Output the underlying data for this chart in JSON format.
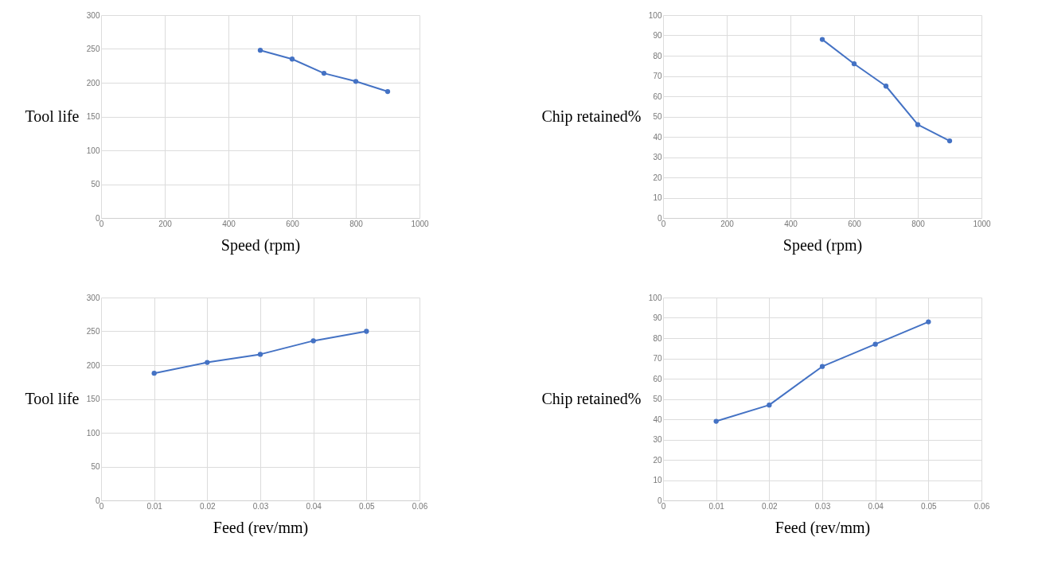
{
  "chart_data": [
    {
      "type": "line",
      "xlabel": "Speed (rpm)",
      "ylabel": "Tool life",
      "x": [
        500,
        600,
        700,
        800,
        900
      ],
      "xlim": [
        0,
        1000
      ],
      "xticks": [
        0,
        200,
        400,
        600,
        800,
        1000
      ],
      "ylim": [
        0,
        300
      ],
      "yticks": [
        0,
        50,
        100,
        150,
        200,
        250,
        300
      ],
      "grid": true,
      "marker": "circle",
      "line_style": "solid",
      "series": [
        {
          "color": "#4472c4",
          "values": [
            248,
            235,
            214,
            202,
            187
          ]
        }
      ]
    },
    {
      "type": "line",
      "xlabel": "Speed (rpm)",
      "ylabel": "Chip retained%",
      "x": [
        500,
        600,
        700,
        800,
        900
      ],
      "xlim": [
        0,
        1000
      ],
      "xticks": [
        0,
        200,
        400,
        600,
        800,
        1000
      ],
      "ylim": [
        0,
        100
      ],
      "yticks": [
        0,
        10,
        20,
        30,
        40,
        50,
        60,
        70,
        80,
        90,
        100
      ],
      "grid": true,
      "marker": "circle",
      "line_style": "solid",
      "series": [
        {
          "color": "#4472c4",
          "values": [
            88,
            76,
            65,
            46,
            38
          ]
        }
      ]
    },
    {
      "type": "line",
      "xlabel": "Feed (rev/mm)",
      "ylabel": "Tool life",
      "x": [
        0.01,
        0.02,
        0.03,
        0.04,
        0.05
      ],
      "xlim": [
        0,
        0.06
      ],
      "xticks": [
        0,
        0.01,
        0.02,
        0.03,
        0.04,
        0.05,
        0.06
      ],
      "ylim": [
        0,
        300
      ],
      "yticks": [
        0,
        50,
        100,
        150,
        200,
        250,
        300
      ],
      "grid": true,
      "marker": "circle",
      "line_style": "solid",
      "series": [
        {
          "color": "#4472c4",
          "values": [
            188,
            204,
            216,
            236,
            250
          ]
        }
      ]
    },
    {
      "type": "line",
      "xlabel": "Feed (rev/mm)",
      "ylabel": "Chip retained%",
      "x": [
        0.01,
        0.02,
        0.03,
        0.04,
        0.05
      ],
      "xlim": [
        0,
        0.06
      ],
      "xticks": [
        0,
        0.01,
        0.02,
        0.03,
        0.04,
        0.05,
        0.06
      ],
      "ylim": [
        0,
        100
      ],
      "yticks": [
        0,
        10,
        20,
        30,
        40,
        50,
        60,
        70,
        80,
        90,
        100
      ],
      "grid": true,
      "marker": "circle",
      "line_style": "solid",
      "series": [
        {
          "color": "#4472c4",
          "values": [
            39,
            47,
            66,
            77,
            88
          ]
        }
      ]
    }
  ]
}
